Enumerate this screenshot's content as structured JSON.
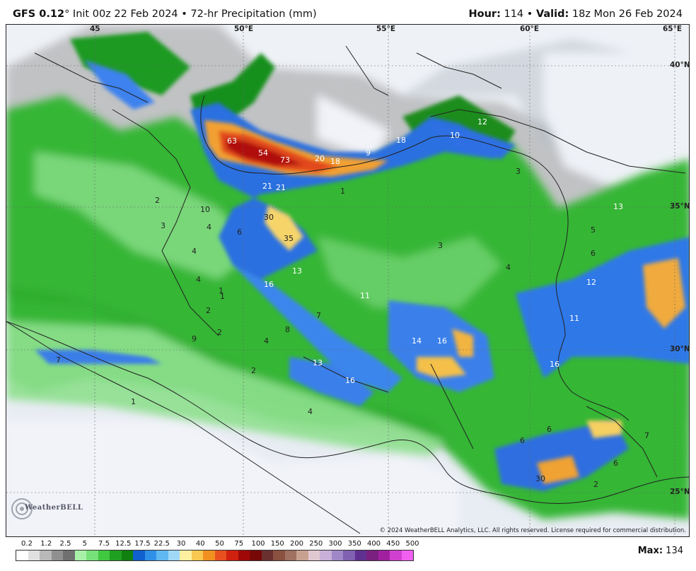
{
  "header": {
    "model": "GFS 0.12",
    "degree": "°",
    "init": " Init 00z 22 Feb 2024 • 72-hr Precipitation (mm)",
    "hour_label": "Hour:",
    "hour_value": " 114 • ",
    "valid_label": "Valid:",
    "valid_value": " 18z Mon 26 Feb 2024"
  },
  "map": {
    "lon_labels": [
      "45",
      "50°E",
      "55°E",
      "60°E",
      "65°E"
    ],
    "lat_labels": [
      "40°N",
      "35°N",
      "30°N",
      "25°N"
    ],
    "values": [
      "63",
      "54",
      "73",
      "20",
      "18",
      "9",
      "18",
      "10",
      "12",
      "3",
      "21",
      "21",
      "1",
      "30",
      "35",
      "13",
      "16",
      "11",
      "14",
      "16",
      "13",
      "16",
      "12",
      "13",
      "11",
      "16",
      "6",
      "5",
      "6",
      "4",
      "3",
      "7",
      "8",
      "2",
      "4",
      "1",
      "4",
      "10",
      "6",
      "3",
      "4",
      "4",
      "2",
      "1",
      "2",
      "4",
      "2",
      "7",
      "1",
      "9",
      "6",
      "30",
      "7",
      "6",
      "2"
    ],
    "copyright": "© 2024 WeatherBELL Analytics, LLC. All rights reserved. License required for commercial distribution.",
    "logo_text": "WeatherBELL"
  },
  "legend": {
    "labels": [
      "0.2",
      "1.2",
      "2.5",
      "5",
      "7.5",
      "12.5",
      "17.5",
      "22.5",
      "30",
      "40",
      "50",
      "75",
      "100",
      "150",
      "200",
      "250",
      "300",
      "350",
      "400",
      "450",
      "500"
    ],
    "colors": [
      "#ffffff",
      "#e0e0e0",
      "#b8b8b8",
      "#909090",
      "#707070",
      "#a8f0a8",
      "#78e078",
      "#40c840",
      "#20a020",
      "#108010",
      "#1060d0",
      "#3090e8",
      "#60b8f0",
      "#a0d8f8",
      "#fff0a0",
      "#f8c850",
      "#f09020",
      "#e85020",
      "#d02010",
      "#a00808",
      "#780808",
      "#6a3030",
      "#8a5040",
      "#a07060",
      "#c8a090",
      "#e0c8d0",
      "#c8b0d8",
      "#a088c8",
      "#8060b0",
      "#603090",
      "#7a2080",
      "#a020a0",
      "#d040d0",
      "#f060f0"
    ],
    "max_label": "Max:",
    "max_value": " 134"
  }
}
